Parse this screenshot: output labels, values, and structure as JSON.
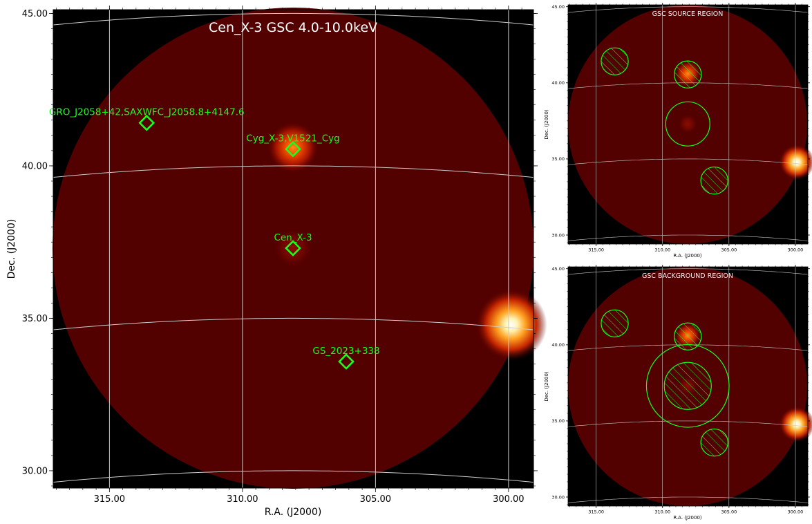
{
  "chart_data": [
    {
      "type": "heatmap",
      "id": "main",
      "title": "Cen_X-3 GSC 4.0-10.0keV",
      "xlabel": "R.A. (J2000)",
      "ylabel": "Dec. (J2000)",
      "x_ticks": [
        "315.00",
        "310.00",
        "305.00",
        "300.00"
      ],
      "y_ticks": [
        "45.00",
        "40.00",
        "35.00",
        "30.00"
      ],
      "xlim": [
        317.1,
        299.1
      ],
      "ylim": [
        29.4,
        45.1
      ],
      "grid": true,
      "colormap": "hot",
      "sources": [
        {
          "name": "GRO_J2058+42,SAXWFC_J2058.8+4147.6",
          "ra": 313.6,
          "dec": 41.55
        },
        {
          "name": "Cyg_X-3,V1521_Cyg",
          "ra": 308.1,
          "dec": 40.55
        },
        {
          "name": "Cen_X-3",
          "ra": 308.1,
          "dec": 37.3
        },
        {
          "name": "GS_2023+338",
          "ra": 306.1,
          "dec": 33.6
        }
      ],
      "bright_spots": [
        {
          "ra": 308.1,
          "dec": 40.6,
          "intensity": "medium"
        },
        {
          "ra": 308.1,
          "dec": 37.3,
          "intensity": "faint"
        },
        {
          "ra": 299.9,
          "dec": 35.1,
          "intensity": "bright"
        }
      ]
    },
    {
      "type": "heatmap",
      "id": "source_region",
      "title": "GSC SOURCE REGION",
      "xlabel": "R.A. (J2000)",
      "ylabel": "Dec. (J2000)",
      "x_ticks": [
        "315.00",
        "310.00",
        "305.00",
        "300.00"
      ],
      "y_ticks": [
        "45.00",
        "40.00",
        "35.00",
        "30.00"
      ],
      "regions": [
        {
          "kind": "excluded",
          "ra": 313.6,
          "dec": 41.55,
          "radius_deg": 0.95
        },
        {
          "kind": "excluded",
          "ra": 308.1,
          "dec": 40.55,
          "radius_deg": 0.95
        },
        {
          "kind": "source",
          "ra": 308.1,
          "dec": 37.3,
          "radius_deg": 1.55
        },
        {
          "kind": "excluded",
          "ra": 306.1,
          "dec": 33.6,
          "radius_deg": 0.95
        }
      ]
    },
    {
      "type": "heatmap",
      "id": "background_region",
      "title": "GSC BACKGROUND REGION",
      "xlabel": "R.A. (J2000)",
      "ylabel": "Dec. (J2000)",
      "x_ticks": [
        "315.00",
        "310.00",
        "305.00",
        "300.00"
      ],
      "y_ticks": [
        "45.00",
        "40.00",
        "35.00",
        "30.00"
      ],
      "regions": [
        {
          "kind": "excluded",
          "ra": 313.6,
          "dec": 41.55,
          "radius_deg": 0.95
        },
        {
          "kind": "excluded",
          "ra": 308.1,
          "dec": 40.55,
          "radius_deg": 0.95
        },
        {
          "kind": "excluded",
          "ra": 308.1,
          "dec": 37.3,
          "radius_deg": 1.65
        },
        {
          "kind": "background",
          "ra": 308.1,
          "dec": 37.3,
          "radius_deg": 2.9
        },
        {
          "kind": "excluded",
          "ra": 306.1,
          "dec": 33.6,
          "radius_deg": 0.95
        }
      ]
    }
  ],
  "colors": {
    "marker": "#19ff19",
    "grid": "#cccccc",
    "disk": "#520000",
    "sky_background": "#000000",
    "title_main": "#ffffff",
    "title_small": "#f2f2f2"
  }
}
